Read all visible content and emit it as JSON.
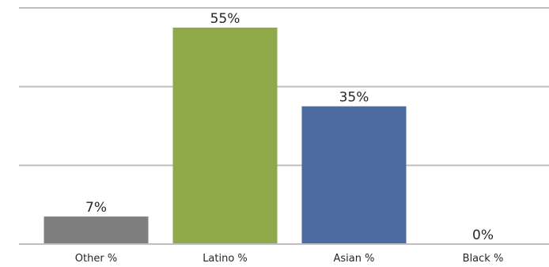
{
  "chart_data": {
    "type": "bar",
    "title": "",
    "xlabel": "",
    "ylabel": "",
    "categories": [
      "Other %",
      "Latino %",
      "Asian %",
      "Black %"
    ],
    "values": [
      7,
      55,
      35,
      0
    ],
    "value_labels": [
      "7%",
      "55%",
      "35%",
      "0%"
    ],
    "colors": [
      "#7f7f7f",
      "#8ea84a",
      "#4a6aa0",
      "#4a6aa0"
    ],
    "ylim": [
      0,
      60
    ],
    "gridlines": [
      20,
      40,
      60
    ],
    "grid": true,
    "legend": "none"
  }
}
